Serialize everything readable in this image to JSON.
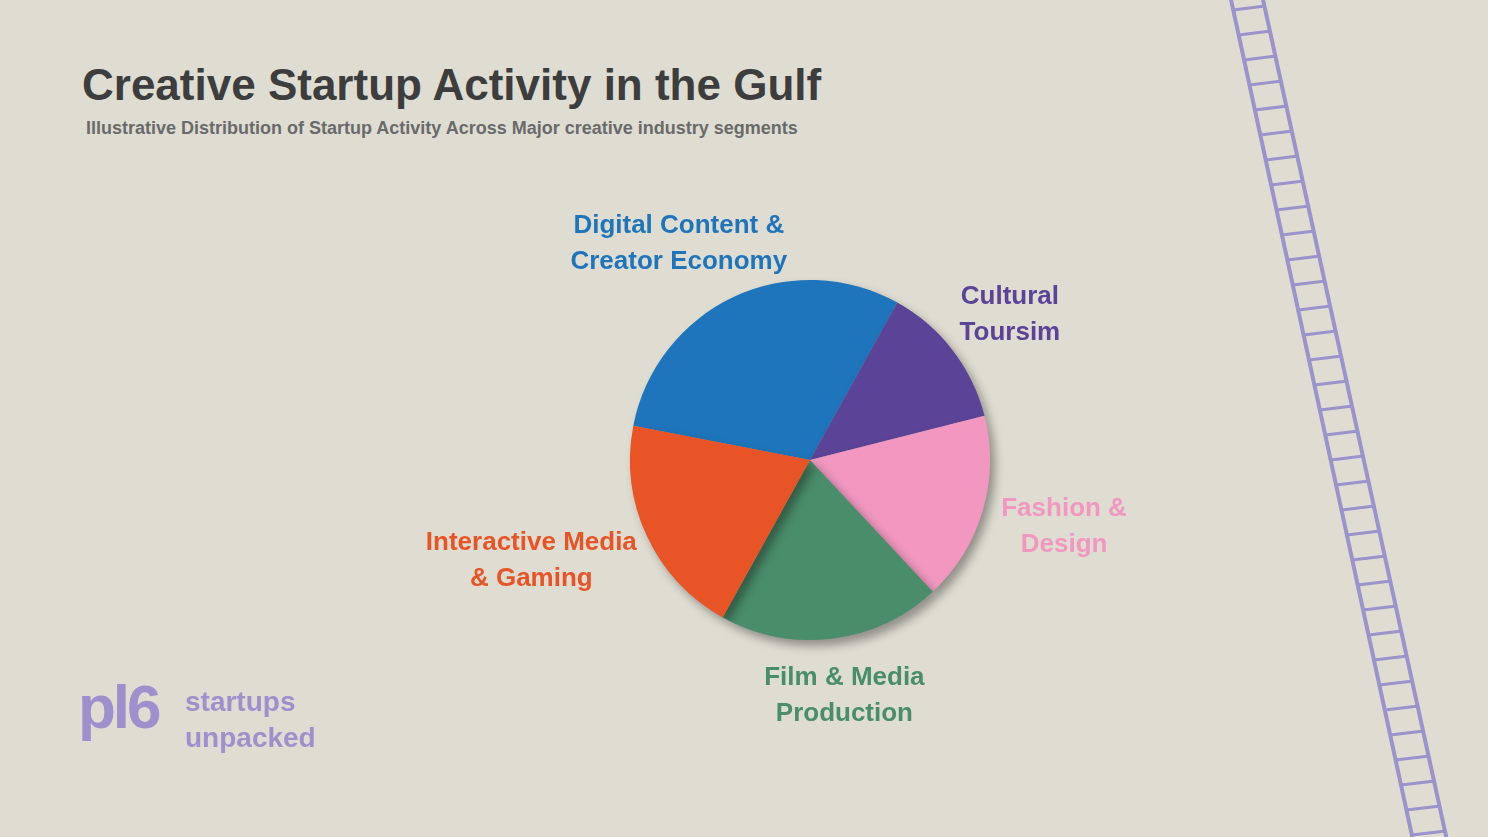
{
  "chart_data": {
    "type": "pie",
    "title": "Creative Startup Activity in the Gulf",
    "subtitle": "Illustrative Distribution of Startup Activity Across Major creative industry segments",
    "categories": [
      "Digital Content & Creator Economy",
      "Cultural Toursim",
      "Fashion & Design",
      "Film & Media Production",
      "Interactive Media & Gaming"
    ],
    "values": [
      30,
      13,
      17,
      20,
      20
    ],
    "colors": [
      "#1f75bb",
      "#5b4398",
      "#f197c0",
      "#4a8d6a",
      "#e85426"
    ]
  },
  "brand": {
    "logo": "pl6",
    "name": "startups unpacked"
  }
}
